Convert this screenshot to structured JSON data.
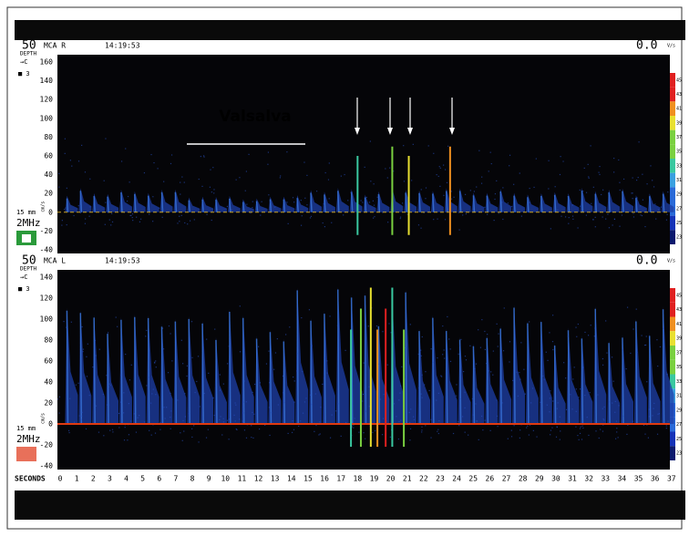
{
  "panels": [
    {
      "depth": "50",
      "depth_label": "DEPTH",
      "marker": "→C",
      "channel": "■ 3",
      "vessel": "MCA R",
      "time": "14:19:53",
      "speed": "0.0",
      "speed_unit": "V/s",
      "gate_label": "15 mm",
      "frequency": "2MHz",
      "unit": "cm/s",
      "yticks": [
        "160",
        "140",
        "120",
        "100",
        "80",
        "60",
        "40",
        "20",
        "0",
        "-20",
        "-40"
      ],
      "scale": [
        "45",
        "43",
        "41",
        "39",
        "37",
        "35",
        "33",
        "31",
        "29",
        "27",
        "25",
        "23"
      ]
    },
    {
      "depth": "50",
      "depth_label": "DEPTH",
      "marker": "→C",
      "channel": "■ 3",
      "vessel": "MCA L",
      "time": "14:19:53",
      "speed": "0.0",
      "speed_unit": "V/s",
      "gate_label": "15 mm",
      "frequency": "2MHz",
      "unit": "cm/s",
      "yticks": [
        "140",
        "120",
        "100",
        "80",
        "60",
        "40",
        "20",
        "0",
        "-20",
        "-40"
      ],
      "scale": [
        "45",
        "43",
        "41",
        "39",
        "37",
        "35",
        "33",
        "31",
        "29",
        "27",
        "25",
        "23"
      ]
    }
  ],
  "annotation": "Valsalva",
  "x_axis_label": "SECONDS",
  "xticks": [
    "0",
    "1",
    "2",
    "3",
    "4",
    "5",
    "6",
    "7",
    "8",
    "9",
    "10",
    "11",
    "12",
    "13",
    "14",
    "15",
    "16",
    "17",
    "18",
    "19",
    "20",
    "21",
    "22",
    "23",
    "24",
    "25",
    "26",
    "27",
    "28",
    "29",
    "30",
    "31",
    "32",
    "33",
    "34",
    "35",
    "36",
    "37"
  ]
}
